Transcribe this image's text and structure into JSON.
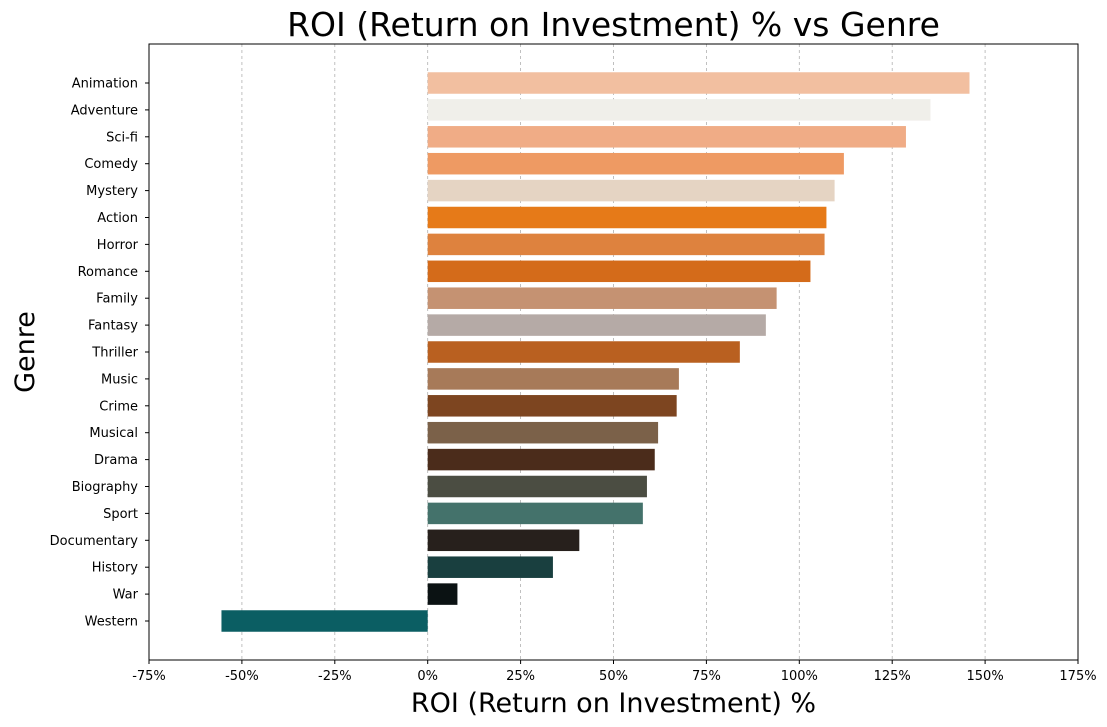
{
  "chart_data": {
    "type": "bar",
    "orientation": "horizontal",
    "title": "ROI (Return on Investment) % vs Genre",
    "xlabel": "ROI (Return on Investment) %",
    "ylabel": "Genre",
    "xlim": [
      -75,
      175
    ],
    "xticks": [
      -75,
      -50,
      -25,
      0,
      25,
      50,
      75,
      100,
      125,
      150,
      175
    ],
    "xtick_labels": [
      "-75%",
      "-50%",
      "-25%",
      "0%",
      "25%",
      "50%",
      "75%",
      "100%",
      "125%",
      "150%",
      "175%"
    ],
    "grid": "x-dashed",
    "categories": [
      "Animation",
      "Adventure",
      "Sci-fi",
      "Comedy",
      "Mystery",
      "Action",
      "Horror",
      "Romance",
      "Family",
      "Fantasy",
      "Thriller",
      "Music",
      "Crime",
      "Musical",
      "Drama",
      "Biography",
      "Sport",
      "Documentary",
      "History",
      "War",
      "Western"
    ],
    "values": [
      145.8,
      135.3,
      128.7,
      112.0,
      109.5,
      107.3,
      106.8,
      103.0,
      93.9,
      91.0,
      84.0,
      67.6,
      67.0,
      62.0,
      61.1,
      59.0,
      57.9,
      40.8,
      33.7,
      8.0,
      -55.5
    ],
    "colors": [
      "#f2bfa0",
      "#f0efea",
      "#f0ac86",
      "#ee9a63",
      "#e5d4c3",
      "#e67a18",
      "#de823e",
      "#d46b1a",
      "#c59272",
      "#b5aaa6",
      "#b96020",
      "#a77a59",
      "#7d4520",
      "#7b6149",
      "#4b2c1b",
      "#4b4d42",
      "#44726b",
      "#27201c",
      "#193f3f",
      "#0b1213",
      "#0b5e63"
    ]
  }
}
